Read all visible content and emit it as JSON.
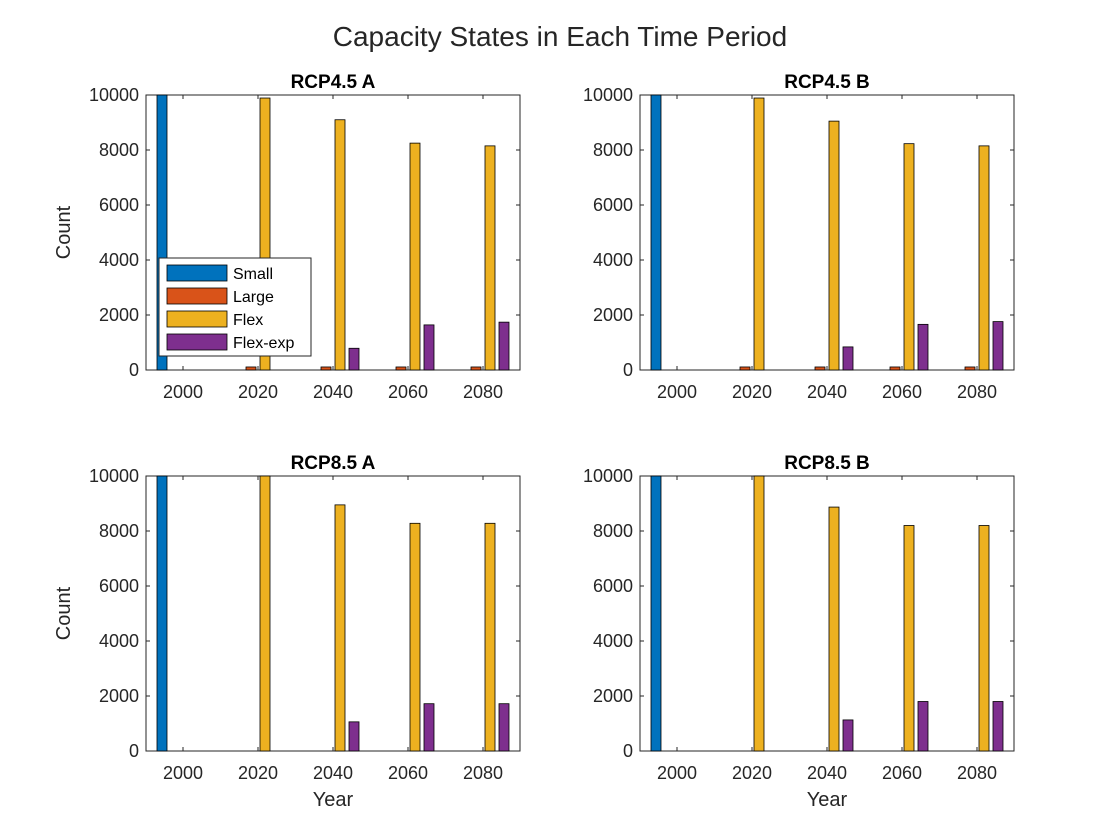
{
  "figure": {
    "title": "Capacity States in Each Time Period"
  },
  "legend": {
    "placement": "inside-left",
    "items": [
      {
        "label": "Small",
        "color": "#0072BD"
      },
      {
        "label": "Large",
        "color": "#D95319"
      },
      {
        "label": "Flex",
        "color": "#EDB120"
      },
      {
        "label": "Flex-exp",
        "color": "#7E2F8E"
      }
    ]
  },
  "chart_data": [
    {
      "type": "bar",
      "title": "RCP4.5 A",
      "xlabel": "",
      "ylabel": "Count",
      "categories": [
        "2000",
        "2020",
        "2040",
        "2060",
        "2080"
      ],
      "yticks": [
        "0",
        "2000",
        "4000",
        "6000",
        "8000",
        "10000"
      ],
      "ylim": [
        0,
        10000
      ],
      "grid": false,
      "series": [
        {
          "name": "Small",
          "color": "#0072BD",
          "values": [
            10000,
            0,
            0,
            0,
            0
          ]
        },
        {
          "name": "Large",
          "color": "#D95319",
          "values": [
            0,
            110,
            110,
            110,
            110
          ]
        },
        {
          "name": "Flex",
          "color": "#EDB120",
          "values": [
            0,
            9890,
            9100,
            8250,
            8150
          ]
        },
        {
          "name": "Flex-exp",
          "color": "#7E2F8E",
          "values": [
            0,
            0,
            790,
            1640,
            1740
          ]
        }
      ]
    },
    {
      "type": "bar",
      "title": "RCP4.5 B",
      "xlabel": "",
      "ylabel": "",
      "categories": [
        "2000",
        "2020",
        "2040",
        "2060",
        "2080"
      ],
      "yticks": [
        "0",
        "2000",
        "4000",
        "6000",
        "8000",
        "10000"
      ],
      "ylim": [
        0,
        10000
      ],
      "grid": false,
      "series": [
        {
          "name": "Small",
          "color": "#0072BD",
          "values": [
            10000,
            0,
            0,
            0,
            0
          ]
        },
        {
          "name": "Large",
          "color": "#D95319",
          "values": [
            0,
            110,
            110,
            110,
            110
          ]
        },
        {
          "name": "Flex",
          "color": "#EDB120",
          "values": [
            0,
            9890,
            9050,
            8230,
            8150
          ]
        },
        {
          "name": "Flex-exp",
          "color": "#7E2F8E",
          "values": [
            0,
            0,
            840,
            1660,
            1760
          ]
        }
      ]
    },
    {
      "type": "bar",
      "title": "RCP8.5 A",
      "xlabel": "Year",
      "ylabel": "Count",
      "categories": [
        "2000",
        "2020",
        "2040",
        "2060",
        "2080"
      ],
      "yticks": [
        "0",
        "2000",
        "4000",
        "6000",
        "8000",
        "10000"
      ],
      "ylim": [
        0,
        10000
      ],
      "grid": false,
      "series": [
        {
          "name": "Small",
          "color": "#0072BD",
          "values": [
            10000,
            0,
            0,
            0,
            0
          ]
        },
        {
          "name": "Large",
          "color": "#D95319",
          "values": [
            0,
            0,
            0,
            0,
            0
          ]
        },
        {
          "name": "Flex",
          "color": "#EDB120",
          "values": [
            0,
            10000,
            8950,
            8280,
            8280
          ]
        },
        {
          "name": "Flex-exp",
          "color": "#7E2F8E",
          "values": [
            0,
            0,
            1060,
            1720,
            1720
          ]
        }
      ]
    },
    {
      "type": "bar",
      "title": "RCP8.5 B",
      "xlabel": "Year",
      "ylabel": "",
      "categories": [
        "2000",
        "2020",
        "2040",
        "2060",
        "2080"
      ],
      "yticks": [
        "0",
        "2000",
        "4000",
        "6000",
        "8000",
        "10000"
      ],
      "ylim": [
        0,
        10000
      ],
      "grid": false,
      "series": [
        {
          "name": "Small",
          "color": "#0072BD",
          "values": [
            10000,
            0,
            0,
            0,
            0
          ]
        },
        {
          "name": "Large",
          "color": "#D95319",
          "values": [
            0,
            0,
            0,
            0,
            0
          ]
        },
        {
          "name": "Flex",
          "color": "#EDB120",
          "values": [
            0,
            10000,
            8870,
            8200,
            8200
          ]
        },
        {
          "name": "Flex-exp",
          "color": "#7E2F8E",
          "values": [
            0,
            0,
            1130,
            1800,
            1800
          ]
        }
      ]
    }
  ]
}
